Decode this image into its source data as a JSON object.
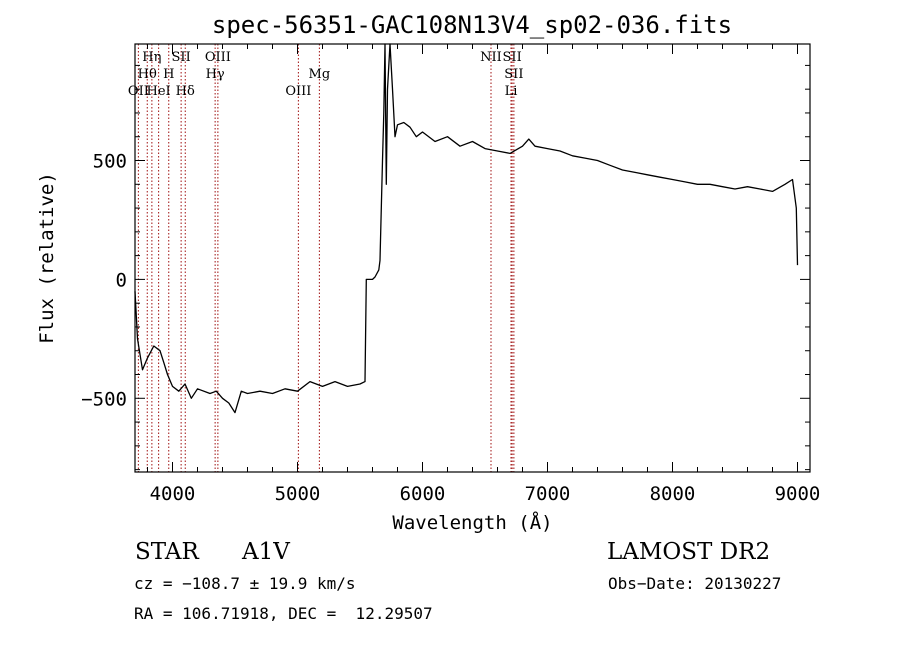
{
  "chart_data": {
    "type": "line",
    "title": "spec-56351-GAC108N13V4_sp02-036.fits",
    "xlabel": "Wavelength (Å)",
    "ylabel": "Flux (relative)",
    "xlim": [
      3700,
      9100
    ],
    "ylim": [
      -810,
      990
    ],
    "xticks": [
      4000,
      5000,
      6000,
      7000,
      8000,
      9000
    ],
    "xtick_labels": [
      "4000",
      "5000",
      "6000",
      "7000",
      "8000",
      "9000"
    ],
    "yticks": [
      -500,
      0,
      500
    ],
    "ytick_labels": [
      "−500",
      "0",
      "500"
    ],
    "grid": false,
    "series": [
      {
        "color": "#000000",
        "x": [
          3700,
          3720,
          3760,
          3800,
          3850,
          3900,
          3930,
          3960,
          4000,
          4050,
          4100,
          4150,
          4200,
          4300,
          4350,
          4400,
          4450,
          4500,
          4550,
          4600,
          4700,
          4800,
          4900,
          5000,
          5100,
          5200,
          5300,
          5400,
          5500,
          5540,
          5550,
          5560,
          5600,
          5620,
          5650,
          5660,
          5670,
          5680,
          5690,
          5700,
          5710,
          5720,
          5740,
          5760,
          5780,
          5800,
          5850,
          5900,
          5950,
          6000,
          6100,
          6200,
          6300,
          6400,
          6500,
          6600,
          6700,
          6800,
          6850,
          6900,
          7000,
          7100,
          7200,
          7300,
          7400,
          7500,
          7600,
          7700,
          7800,
          7900,
          8000,
          8100,
          8200,
          8300,
          8400,
          8500,
          8600,
          8700,
          8800,
          8900,
          8960,
          8990,
          9000
        ],
        "y": [
          -50,
          -250,
          -380,
          -330,
          -280,
          -300,
          -350,
          -400,
          -450,
          -470,
          -440,
          -500,
          -460,
          -480,
          -470,
          -500,
          -520,
          -560,
          -470,
          -480,
          -470,
          -480,
          -460,
          -470,
          -430,
          -450,
          -430,
          -450,
          -440,
          -430,
          0,
          0,
          0,
          10,
          40,
          80,
          300,
          500,
          700,
          990,
          400,
          800,
          1000,
          800,
          600,
          650,
          660,
          640,
          600,
          620,
          580,
          600,
          560,
          580,
          550,
          540,
          530,
          560,
          590,
          560,
          550,
          540,
          520,
          510,
          500,
          480,
          460,
          450,
          440,
          430,
          420,
          410,
          400,
          400,
          390,
          380,
          390,
          380,
          370,
          400,
          420,
          300,
          60
        ]
      }
    ],
    "lines": [
      {
        "label": "OII",
        "x": 3727,
        "row": 3
      },
      {
        "label": "Hθ",
        "x": 3798,
        "row": 2
      },
      {
        "label": "Hη",
        "x": 3835,
        "row": 1
      },
      {
        "label": "HeI",
        "x": 3889,
        "row": 3
      },
      {
        "label": "SII",
        "x": 4069,
        "row": 1
      },
      {
        "label": "H",
        "x": 3970,
        "row": 2
      },
      {
        "label": "Hδ",
        "x": 4102,
        "row": 3
      },
      {
        "label": "OIII",
        "x": 4363,
        "row": 1
      },
      {
        "label": "Hγ",
        "x": 4341,
        "row": 2
      },
      {
        "label": "OIII",
        "x": 5007,
        "row": 3
      },
      {
        "label": "Mg",
        "x": 5175,
        "row": 2
      },
      {
        "label": "NII",
        "x": 6548,
        "row": 1
      },
      {
        "label": "SII",
        "x": 6717,
        "row": 1
      },
      {
        "label": "SII",
        "x": 6731,
        "row": 2
      },
      {
        "label": "Li",
        "x": 6708,
        "row": 3
      }
    ]
  },
  "info": {
    "class": "STAR",
    "subclass": "A1V",
    "survey": "LAMOST DR2",
    "cz": "cz = −108.7 ± 19.9 km/s",
    "obsdate": "Obs−Date: 20130227",
    "radec": "RA = 106.71918, DEC =  12.29507"
  }
}
